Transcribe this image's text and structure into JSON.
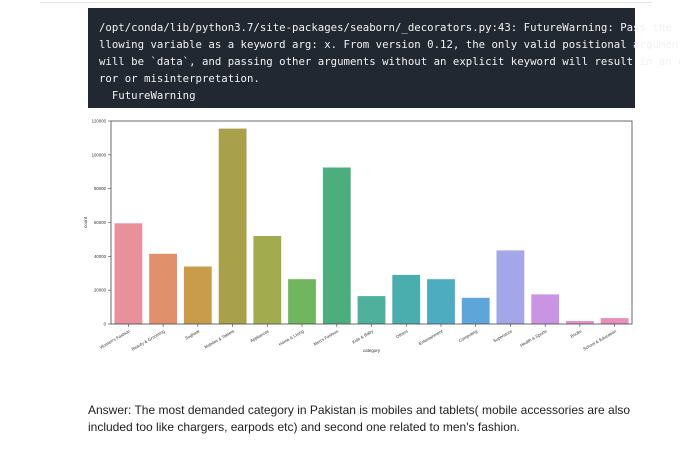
{
  "output": {
    "lines": [
      "/opt/conda/lib/python3.7/site-packages/seaborn/_decorators.py:43: FutureWarning: Pass the fo",
      "llowing variable as a keyword arg: x. From version 0.12, the only valid positional argument",
      "will be `data`, and passing other arguments without an explicit keyword will result in an er",
      "ror or misinterpretation.",
      "  FutureWarning"
    ]
  },
  "chart_data": {
    "type": "bar",
    "title": "",
    "xlabel": "category",
    "ylabel": "count",
    "ylim": [
      0,
      120000
    ],
    "yticks": [
      0,
      20000,
      40000,
      60000,
      80000,
      100000,
      120000
    ],
    "grid": false,
    "categories": [
      "Women's Fashion",
      "Beauty & Grooming",
      "Soghaat",
      "Mobiles & Tablets",
      "Appliances",
      "Home & Living",
      "Men's Fashion",
      "Kids & Baby",
      "Others",
      "Entertainment",
      "Computing",
      "Superstore",
      "Health & Sports",
      "Books",
      "School & Education"
    ],
    "values": [
      59500,
      41500,
      34000,
      115500,
      52000,
      26500,
      92500,
      16500,
      29000,
      26500,
      15500,
      43500,
      17500,
      1800,
      3500
    ],
    "colors": [
      "#e8919a",
      "#e0906a",
      "#c89c4a",
      "#a9a04b",
      "#a2ac4f",
      "#6fb65e",
      "#4cae7d",
      "#4fb09c",
      "#4aaeae",
      "#4eacc0",
      "#5ea6d9",
      "#a3a6e8",
      "#c894e3",
      "#e38ed5",
      "#e98fc0"
    ]
  },
  "answer": {
    "text": "Answer: The most demanded category in Pakistan is mobiles and tablets( mobile accessories are also included too like chargers, earpods etc) and second one related to men's fashion."
  }
}
